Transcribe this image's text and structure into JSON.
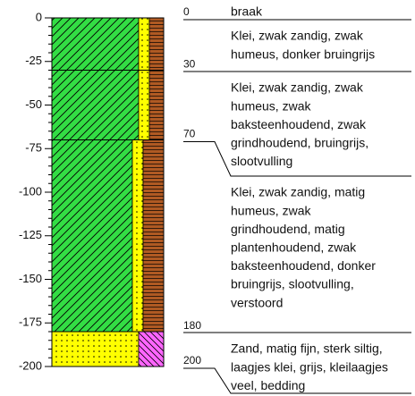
{
  "axis_ticks": [
    0,
    -25,
    -50,
    -75,
    -100,
    -125,
    -150,
    -175,
    -200
  ],
  "depths": [
    0,
    30,
    70,
    180,
    200
  ],
  "note": "braak",
  "descriptions": [
    [
      "Klei, zwak zandig, zwak",
      "humeus, donker bruingrijs"
    ],
    [
      "Klei, zwak zandig, zwak",
      "humeus, zwak",
      "baksteenhoudend, zwak",
      "grindhoudend, bruingrijs,",
      "slootvulling"
    ],
    [
      "Klei, zwak zandig, matig",
      "humeus, zwak",
      "grindhoudend, matig",
      "plantenhoudend, zwak",
      "baksteenhoudend, donker",
      "bruingrijs, slootvulling,",
      "verstoord"
    ],
    [
      "Zand, matig fijn, sterk siltig,",
      "laagjes klei, grijs, kleilaagjes",
      "veel, bedding"
    ]
  ]
}
